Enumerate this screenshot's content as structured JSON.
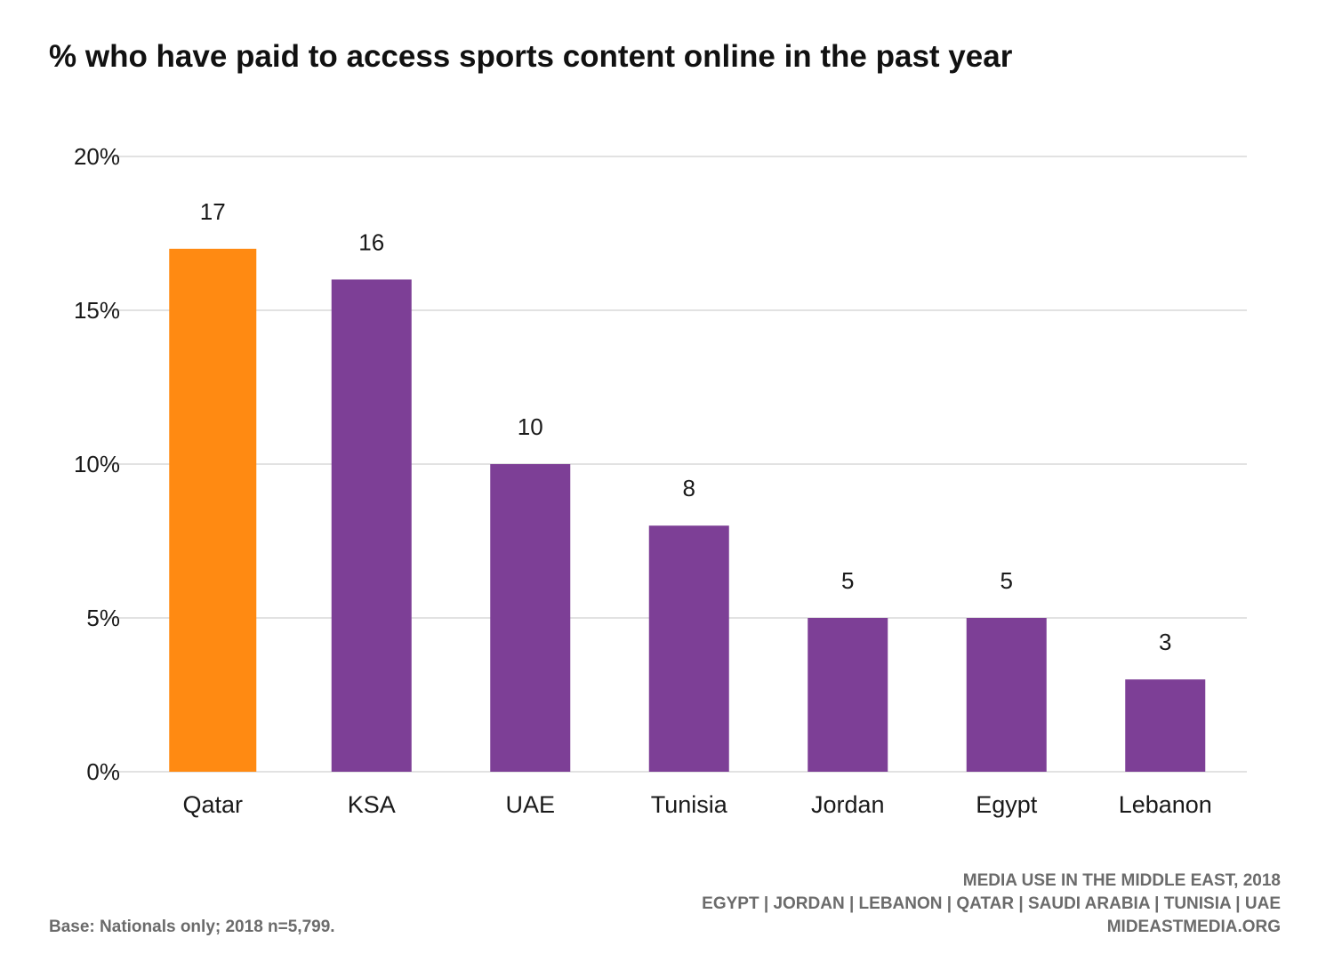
{
  "chart_data": {
    "type": "bar",
    "title": "% who have paid to access sports content online in the past year",
    "categories": [
      "Qatar",
      "KSA",
      "UAE",
      "Tunisia",
      "Jordan",
      "Egypt",
      "Lebanon"
    ],
    "values": [
      17,
      16,
      10,
      8,
      5,
      5,
      3
    ],
    "data_labels": [
      "17",
      "16",
      "10",
      "8",
      "5",
      "5",
      "3"
    ],
    "highlight_index": 0,
    "colors": {
      "default": "#7d3f96",
      "highlight": "#ff8a12",
      "grid": "#d9d9d9"
    },
    "y_ticks": [
      0,
      5,
      10,
      15,
      20
    ],
    "y_tick_labels": [
      "0%",
      "5%",
      "10%",
      "15%",
      "20%"
    ],
    "ylim": [
      0,
      20
    ],
    "grid": true,
    "legend": "none"
  },
  "footer": {
    "base_note": "Base: Nationals only; 2018 n=5,799.",
    "survey_title": "MEDIA USE IN THE MIDDLE EAST, 2018",
    "countries": "EGYPT | JORDAN | LEBANON | QATAR | SAUDI ARABIA | TUNISIA | UAE",
    "website": "MIDEASTMEDIA.ORG"
  }
}
